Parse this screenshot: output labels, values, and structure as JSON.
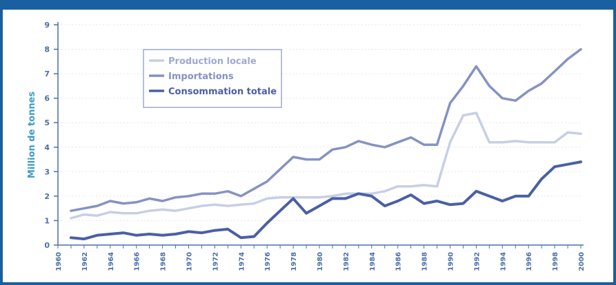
{
  "chart_data": {
    "type": "line",
    "title": "",
    "xlabel": "",
    "ylabel": "Million de tonnes",
    "xlim": [
      1960,
      2000
    ],
    "ylim": [
      0,
      9
    ],
    "yticks": [
      0,
      1,
      2,
      3,
      4,
      5,
      6,
      7,
      8,
      9
    ],
    "xticks": [
      1960,
      1962,
      1964,
      1966,
      1968,
      1970,
      1972,
      1974,
      1976,
      1978,
      1980,
      1982,
      1984,
      1986,
      1988,
      1990,
      1992,
      1994,
      1996,
      1998,
      2000
    ],
    "grid": true,
    "legend_position": "top-left",
    "series": [
      {
        "name": "Production locale",
        "color": "#c7cfe6",
        "x": [
          1961,
          1962,
          1963,
          1964,
          1965,
          1966,
          1967,
          1968,
          1969,
          1970,
          1971,
          1972,
          1973,
          1974,
          1975,
          1976,
          1977,
          1978,
          1979,
          1980,
          1981,
          1982,
          1983,
          1984,
          1985,
          1986,
          1987,
          1988,
          1989,
          1990,
          1991,
          1992,
          1993,
          1994,
          1995,
          1996,
          1997,
          1998,
          1999,
          2000
        ],
        "values": [
          1.1,
          1.25,
          1.2,
          1.35,
          1.3,
          1.3,
          1.4,
          1.45,
          1.4,
          1.5,
          1.6,
          1.65,
          1.6,
          1.65,
          1.7,
          1.9,
          1.95,
          1.95,
          1.95,
          1.95,
          2.0,
          2.1,
          2.1,
          2.1,
          2.2,
          2.4,
          2.4,
          2.45,
          2.4,
          4.2,
          5.3,
          5.4,
          4.2,
          4.2,
          4.25,
          4.2,
          4.2,
          4.2,
          4.6,
          4.55
        ]
      },
      {
        "name": "Importations",
        "color": "#8592c2",
        "x": [
          1961,
          1962,
          1963,
          1964,
          1965,
          1966,
          1967,
          1968,
          1969,
          1970,
          1971,
          1972,
          1973,
          1974,
          1975,
          1976,
          1977,
          1978,
          1979,
          1980,
          1981,
          1982,
          1983,
          1984,
          1985,
          1986,
          1987,
          1988,
          1989,
          1990,
          1991,
          1992,
          1993,
          1994,
          1995,
          1996,
          1997,
          1998,
          1999,
          2000
        ],
        "values": [
          1.4,
          1.5,
          1.6,
          1.8,
          1.7,
          1.75,
          1.9,
          1.8,
          1.95,
          2.0,
          2.1,
          2.1,
          2.2,
          2.0,
          2.3,
          2.6,
          3.1,
          3.6,
          3.5,
          3.5,
          3.9,
          4.0,
          4.25,
          4.1,
          4.0,
          4.2,
          4.4,
          4.1,
          4.1,
          5.8,
          6.5,
          7.3,
          6.5,
          6.0,
          5.9,
          6.3,
          6.6,
          7.1,
          7.6,
          8.0
        ]
      },
      {
        "name": "Consommation totale",
        "color": "#4a5fa6",
        "x": [
          1961,
          1962,
          1963,
          1964,
          1965,
          1966,
          1967,
          1968,
          1969,
          1970,
          1971,
          1972,
          1973,
          1974,
          1975,
          1976,
          1977,
          1978,
          1979,
          1980,
          1981,
          1982,
          1983,
          1984,
          1985,
          1986,
          1987,
          1988,
          1989,
          1990,
          1991,
          1992,
          1993,
          1994,
          1995,
          1996,
          1997,
          1998,
          1999,
          2000
        ],
        "values": [
          0.3,
          0.25,
          0.4,
          0.45,
          0.5,
          0.4,
          0.45,
          0.4,
          0.45,
          0.55,
          0.5,
          0.6,
          0.65,
          0.3,
          0.35,
          0.9,
          1.4,
          1.9,
          1.3,
          1.6,
          1.9,
          1.9,
          2.1,
          2.0,
          1.6,
          1.8,
          2.05,
          1.7,
          1.8,
          1.65,
          1.7,
          2.2,
          2.0,
          1.8,
          2.0,
          2.0,
          2.7,
          3.2,
          3.3,
          3.4
        ]
      }
    ]
  }
}
